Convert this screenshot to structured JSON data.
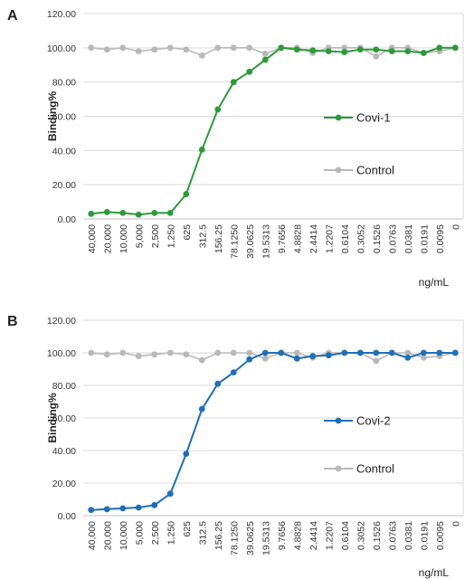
{
  "chart_data": [
    {
      "panel": "A",
      "type": "line",
      "xlabel": "ng/mL",
      "ylabel": "Binding%",
      "ylim": [
        0,
        120
      ],
      "yticks": [
        "0.00",
        "20.00",
        "40.00",
        "60.00",
        "80.00",
        "100.00",
        "120.00"
      ],
      "categories": [
        "40,000",
        "20,000",
        "10,000",
        "5,000",
        "2,500",
        "1,250",
        "625",
        "312.5",
        "156.25",
        "78.1250",
        "39.0625",
        "19.5313",
        "9.7656",
        "4.8828",
        "2.4414",
        "1.2207",
        "0.6104",
        "0.3052",
        "0.1526",
        "0.0763",
        "0.0381",
        "0.0191",
        "0.0095",
        "0"
      ],
      "grid": true,
      "legend": "center-right",
      "series": [
        {
          "name": "Covi-1",
          "color": "#2e9a3a",
          "values": [
            3,
            4,
            3.5,
            2.5,
            3.5,
            3.5,
            14.5,
            40.5,
            64,
            80,
            86,
            93,
            100,
            99,
            98.5,
            98,
            97.5,
            99,
            99,
            98,
            98,
            97,
            100,
            100
          ]
        },
        {
          "name": "Control",
          "color": "#b8b8b8",
          "values": [
            100,
            99,
            100,
            98,
            99,
            100,
            99,
            95.5,
            100,
            100,
            100,
            96.5,
            100,
            100,
            97,
            100,
            100,
            100,
            95,
            100,
            100,
            97,
            98,
            100
          ]
        }
      ]
    },
    {
      "panel": "B",
      "type": "line",
      "xlabel": "ng/mL",
      "ylabel": "Binding%",
      "ylim": [
        0,
        120
      ],
      "yticks": [
        "0.00",
        "20.00",
        "40.00",
        "60.00",
        "80.00",
        "100.00",
        "120.00"
      ],
      "categories": [
        "40,000",
        "20,000",
        "10,000",
        "5,000",
        "2,500",
        "1,250",
        "625",
        "312.5",
        "156.25",
        "78.1250",
        "39.0625",
        "19.5313",
        "9.7656",
        "4.8828",
        "2.4414",
        "1.2207",
        "0.6104",
        "0.3052",
        "0.1526",
        "0.0763",
        "0.0381",
        "0.0191",
        "0.0095",
        "0"
      ],
      "grid": true,
      "legend": "center-right",
      "series": [
        {
          "name": "Covi-2",
          "color": "#1f6fb8",
          "values": [
            3.5,
            4,
            4.5,
            5,
            6.5,
            13.5,
            38,
            65.5,
            81,
            88,
            96,
            100,
            100,
            96.5,
            98,
            98.5,
            100,
            100,
            100,
            100,
            97,
            100,
            100,
            100
          ]
        },
        {
          "name": "Control",
          "color": "#b8b8b8",
          "values": [
            100,
            99,
            100,
            98,
            99,
            100,
            99,
            95.5,
            100,
            100,
            100,
            96.5,
            100,
            100,
            97,
            100,
            100,
            100,
            95,
            100,
            100,
            97,
            98,
            100
          ]
        }
      ]
    }
  ]
}
